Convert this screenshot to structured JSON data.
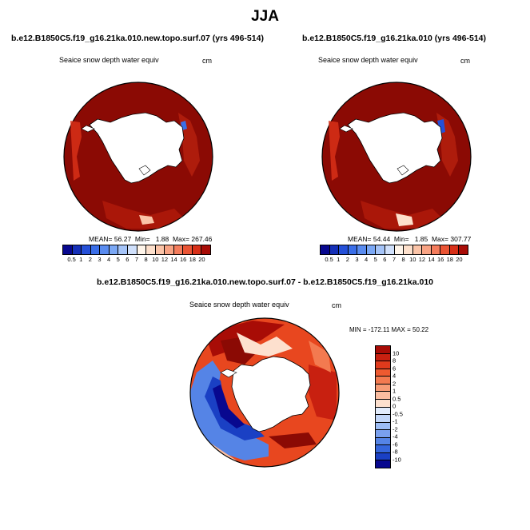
{
  "title": "JJA",
  "panels": [
    {
      "case": "b.e12.B1850C5.f19_g16.21ka.010.new.topo.surf.07 (yrs 496-514)",
      "variable": "Seaice snow depth water equiv",
      "units": "cm",
      "mean_label": "MEAN=",
      "mean": "56.27",
      "min_label": "Min=",
      "min": "1.88",
      "max_label": "Max=",
      "max": "267.46"
    },
    {
      "case": "b.e12.B1850C5.f19_g16.21ka.010 (yrs 496-514)",
      "variable": "Seaice snow depth water equiv",
      "units": "cm",
      "mean_label": "MEAN=",
      "mean": "54.44",
      "min_label": "Min=",
      "min": "1.85",
      "max_label": "Max=",
      "max": "307.77"
    }
  ],
  "diff": {
    "title": "b.e12.B1850C5.f19_g16.21ka.010.new.topo.surf.07 - b.e12.B1850C5.f19_g16.21ka.010",
    "variable": "Seaice snow depth water equiv",
    "units": "cm",
    "minmax": "MIN = -172.11 MAX =  50.22"
  },
  "abs_colorbar": {
    "labels": [
      "0.5",
      "1",
      "2",
      "3",
      "4",
      "5",
      "6",
      "7",
      "8",
      "10",
      "12",
      "14",
      "16",
      "18",
      "20"
    ],
    "colors": [
      "#08088f",
      "#1530b8",
      "#2550d8",
      "#3a6ee8",
      "#5a8cf0",
      "#7ba8f5",
      "#a5c4f8",
      "#d0e0fb",
      "#fff5ea",
      "#fde0cc",
      "#fbc4a8",
      "#f8a384",
      "#f47c5c",
      "#ea5434",
      "#d83018",
      "#a80c06"
    ]
  },
  "diff_colorbar": {
    "labels": [
      "10",
      "8",
      "6",
      "4",
      "2",
      "1",
      "0.5",
      "0",
      "-0.5",
      "-1",
      "-2",
      "-4",
      "-6",
      "-8",
      "-10"
    ],
    "colors": [
      "#a80c06",
      "#c82010",
      "#e03a1c",
      "#ee5a30",
      "#f37a50",
      "#f79c76",
      "#fbbda0",
      "#fde0ce",
      "#e2ecfc",
      "#c2d6f8",
      "#9cbcf4",
      "#7aa0ee",
      "#5584e6",
      "#3566dc",
      "#1a40c4",
      "#08088f"
    ]
  }
}
